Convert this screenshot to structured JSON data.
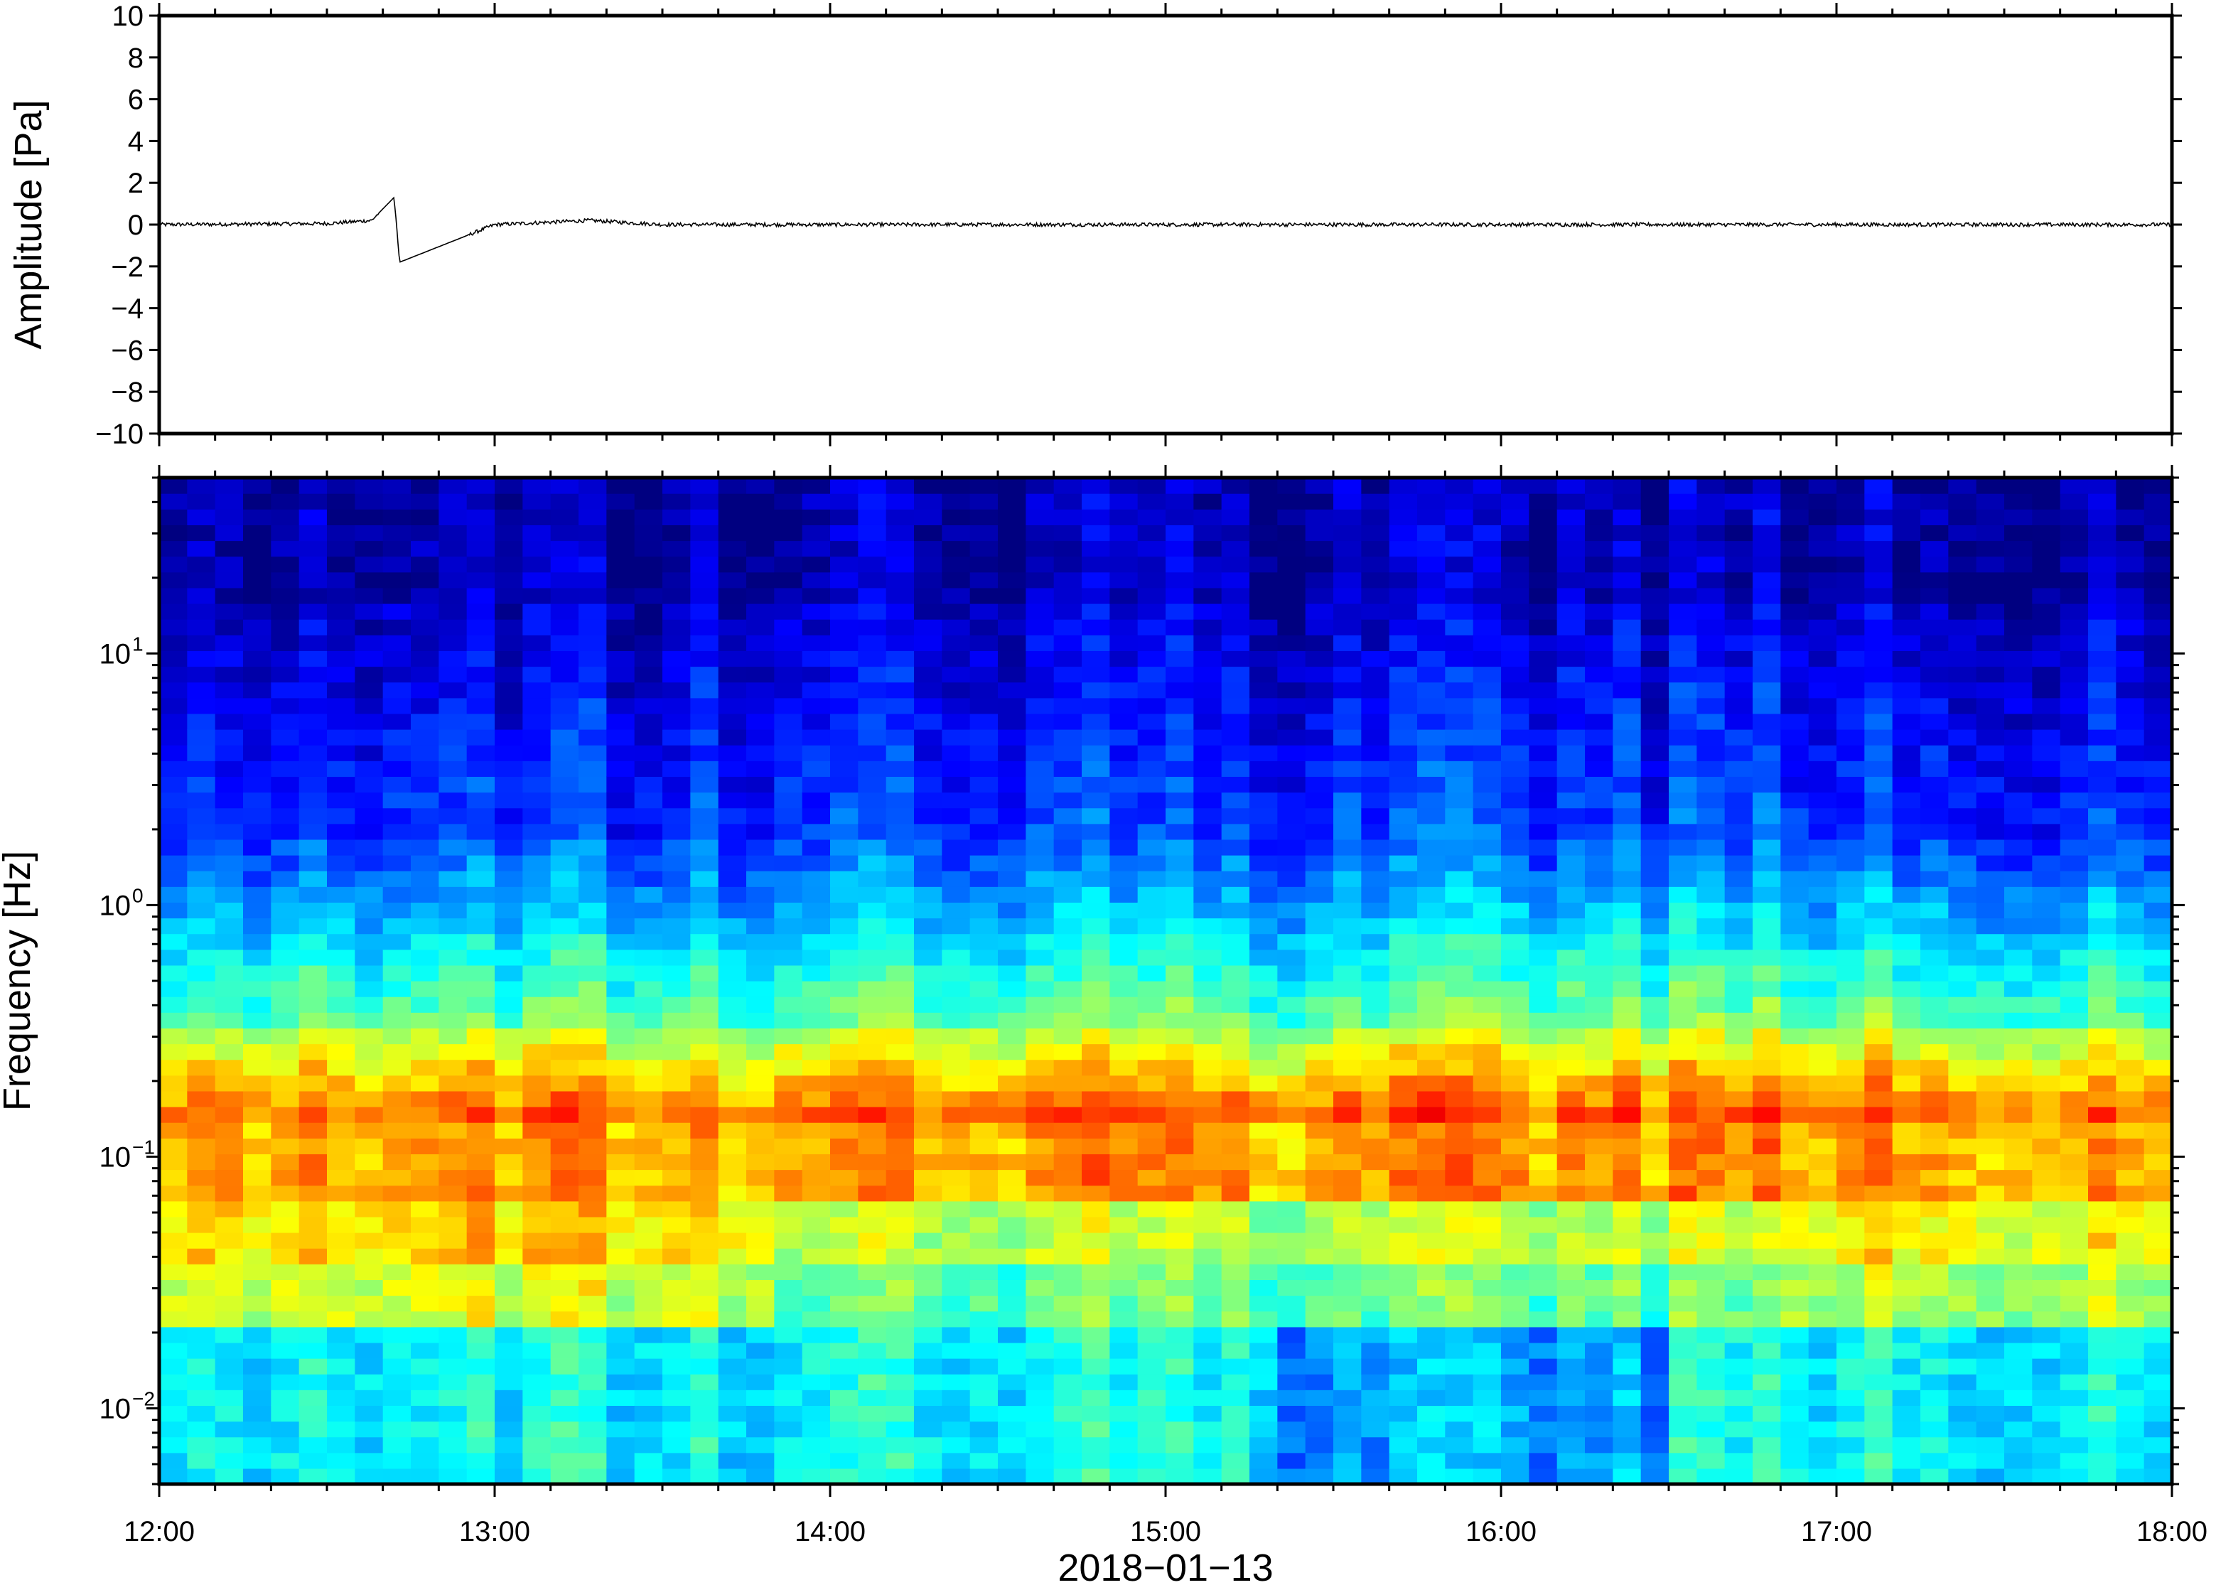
{
  "chart_data": [
    {
      "type": "line",
      "ylabel": "Amplitude [Pa]",
      "ylim": [
        -10,
        10
      ],
      "yticks": [
        "10",
        "8",
        "6",
        "4",
        "2",
        "0",
        "−2",
        "−4",
        "−6",
        "−8",
        "−10"
      ],
      "xlim": [
        "12:00",
        "18:00"
      ],
      "series": [
        {
          "x": [
            "12:00",
            "12:30",
            "12:38",
            "12:42",
            "12:43",
            "13:00",
            "13:17",
            "13:30",
            "14:00",
            "15:00",
            "16:00",
            "17:00",
            "18:00"
          ],
          "values": [
            0.0,
            0.05,
            0.2,
            1.3,
            -1.8,
            0.0,
            0.2,
            0.0,
            0.0,
            0.0,
            0.0,
            0.0,
            0.0
          ]
        }
      ]
    },
    {
      "type": "heatmap",
      "ylabel": "Frequency [Hz]",
      "yscale": "log",
      "ylim": [
        0.005,
        50
      ],
      "yticks": [
        {
          "label": "10",
          "exp": "−2",
          "value": 0.01
        },
        {
          "label": "10",
          "exp": "−1",
          "value": 0.1
        },
        {
          "label": "10",
          "exp": "0",
          "value": 1
        },
        {
          "label": "10",
          "exp": "1",
          "value": 10
        }
      ],
      "xlabel": "2018−01−13",
      "xticks": [
        "12:00",
        "13:00",
        "14:00",
        "15:00",
        "16:00",
        "17:00",
        "18:00"
      ],
      "colormap": "jet",
      "colors": {
        "low": "#00007f",
        "mid": "#7fff7f",
        "high": "#ff7f00"
      }
    }
  ]
}
